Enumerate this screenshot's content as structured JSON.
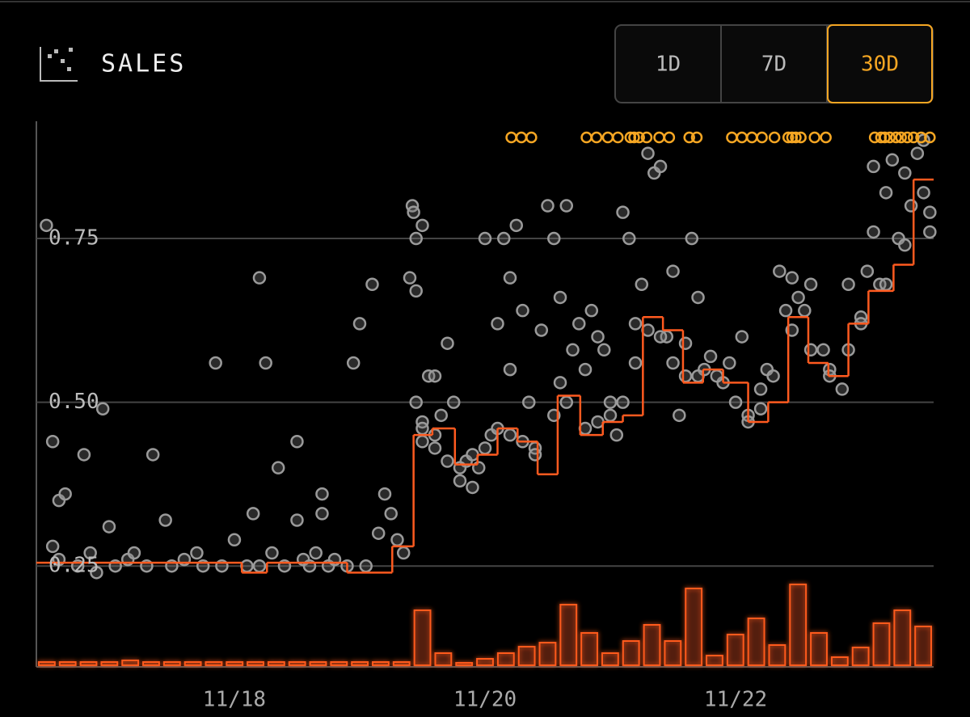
{
  "header": {
    "title": "SALES"
  },
  "buttons": [
    {
      "label": "1D",
      "active": false
    },
    {
      "label": "7D",
      "active": false
    },
    {
      "label": "30D",
      "active": true
    }
  ],
  "chart_data": {
    "type": "scatter",
    "xlim": [
      16.42,
      23.58
    ],
    "ylim": [
      0.096,
      0.929
    ],
    "xticks": [
      {
        "value": 18,
        "label": "11/18"
      },
      {
        "value": 20,
        "label": "11/20"
      },
      {
        "value": 22,
        "label": "11/22"
      }
    ],
    "yticks": [
      0.25,
      {
        "value": 0.5,
        "label": "0.50"
      },
      0.75
    ],
    "grid": true,
    "sales": {
      "color": "#9a9a9a",
      "points": [
        [
          16.5,
          0.77
        ],
        [
          16.55,
          0.44
        ],
        [
          16.6,
          0.35
        ],
        [
          16.65,
          0.36
        ],
        [
          16.55,
          0.28
        ],
        [
          16.6,
          0.26
        ],
        [
          16.75,
          0.25
        ],
        [
          16.8,
          0.42
        ],
        [
          16.85,
          0.27
        ],
        [
          16.9,
          0.24
        ],
        [
          16.95,
          0.49
        ],
        [
          17.0,
          0.31
        ],
        [
          17.05,
          0.25
        ],
        [
          17.15,
          0.26
        ],
        [
          17.2,
          0.27
        ],
        [
          17.3,
          0.25
        ],
        [
          17.35,
          0.42
        ],
        [
          17.45,
          0.32
        ],
        [
          17.5,
          0.25
        ],
        [
          17.6,
          0.26
        ],
        [
          17.7,
          0.27
        ],
        [
          17.75,
          0.25
        ],
        [
          17.85,
          0.56
        ],
        [
          17.9,
          0.25
        ],
        [
          18.0,
          0.29
        ],
        [
          18.1,
          0.25
        ],
        [
          18.15,
          0.33
        ],
        [
          18.2,
          0.25
        ],
        [
          18.2,
          0.69
        ],
        [
          18.25,
          0.56
        ],
        [
          18.3,
          0.27
        ],
        [
          18.35,
          0.4
        ],
        [
          18.4,
          0.25
        ],
        [
          18.5,
          0.44
        ],
        [
          18.5,
          0.32
        ],
        [
          18.55,
          0.26
        ],
        [
          18.6,
          0.25
        ],
        [
          18.65,
          0.27
        ],
        [
          18.7,
          0.36
        ],
        [
          18.7,
          0.33
        ],
        [
          18.75,
          0.25
        ],
        [
          18.8,
          0.26
        ],
        [
          18.9,
          0.25
        ],
        [
          18.95,
          0.56
        ],
        [
          19.0,
          0.62
        ],
        [
          19.05,
          0.25
        ],
        [
          19.1,
          0.68
        ],
        [
          19.15,
          0.3
        ],
        [
          19.2,
          0.36
        ],
        [
          19.25,
          0.33
        ],
        [
          19.3,
          0.29
        ],
        [
          19.35,
          0.27
        ],
        [
          19.42,
          0.8
        ],
        [
          19.43,
          0.79
        ],
        [
          19.45,
          0.75
        ],
        [
          19.4,
          0.69
        ],
        [
          19.45,
          0.67
        ],
        [
          19.5,
          0.77
        ],
        [
          19.45,
          0.5
        ],
        [
          19.5,
          0.47
        ],
        [
          19.5,
          0.44
        ],
        [
          19.55,
          0.54
        ],
        [
          19.6,
          0.54
        ],
        [
          19.65,
          0.48
        ],
        [
          19.6,
          0.43
        ],
        [
          19.7,
          0.59
        ],
        [
          19.75,
          0.5
        ],
        [
          19.8,
          0.38
        ],
        [
          19.85,
          0.41
        ],
        [
          19.9,
          0.37
        ],
        [
          19.95,
          0.4
        ],
        [
          20.0,
          0.75
        ],
        [
          20.05,
          0.45
        ],
        [
          20.1,
          0.62
        ],
        [
          20.15,
          0.75
        ],
        [
          20.2,
          0.69
        ],
        [
          20.25,
          0.77
        ],
        [
          20.2,
          0.55
        ],
        [
          20.3,
          0.64
        ],
        [
          20.35,
          0.5
        ],
        [
          20.4,
          0.43
        ],
        [
          20.45,
          0.61
        ],
        [
          20.5,
          0.8
        ],
        [
          20.55,
          0.75
        ],
        [
          20.6,
          0.53
        ],
        [
          20.65,
          0.8
        ],
        [
          20.6,
          0.66
        ],
        [
          20.7,
          0.58
        ],
        [
          20.75,
          0.62
        ],
        [
          20.8,
          0.55
        ],
        [
          20.85,
          0.64
        ],
        [
          20.9,
          0.6
        ],
        [
          20.95,
          0.58
        ],
        [
          21.0,
          0.5
        ],
        [
          21.05,
          0.45
        ],
        [
          21.1,
          0.79
        ],
        [
          21.15,
          0.75
        ],
        [
          21.2,
          0.62
        ],
        [
          21.25,
          0.68
        ],
        [
          21.3,
          0.88
        ],
        [
          21.35,
          0.85
        ],
        [
          21.4,
          0.86
        ],
        [
          21.45,
          0.6
        ],
        [
          21.5,
          0.7
        ],
        [
          21.55,
          0.48
        ],
        [
          21.6,
          0.59
        ],
        [
          21.65,
          0.75
        ],
        [
          21.7,
          0.66
        ],
        [
          21.75,
          0.55
        ],
        [
          21.8,
          0.57
        ],
        [
          21.9,
          0.53
        ],
        [
          21.95,
          0.56
        ],
        [
          22.05,
          0.6
        ],
        [
          22.1,
          0.48
        ],
        [
          22.2,
          0.52
        ],
        [
          22.25,
          0.55
        ],
        [
          22.35,
          0.7
        ],
        [
          22.4,
          0.64
        ],
        [
          22.45,
          0.69
        ],
        [
          22.5,
          0.66
        ],
        [
          22.55,
          0.64
        ],
        [
          22.6,
          0.68
        ],
        [
          22.7,
          0.58
        ],
        [
          22.75,
          0.55
        ],
        [
          22.85,
          0.52
        ],
        [
          22.9,
          0.68
        ],
        [
          23.0,
          0.63
        ],
        [
          23.05,
          0.7
        ],
        [
          23.1,
          0.76
        ],
        [
          23.1,
          0.86
        ],
        [
          23.15,
          0.68
        ],
        [
          23.2,
          0.82
        ],
        [
          23.25,
          0.87
        ],
        [
          23.3,
          0.75
        ],
        [
          23.35,
          0.85
        ],
        [
          23.4,
          0.8
        ],
        [
          23.45,
          0.88
        ],
        [
          23.5,
          0.82
        ],
        [
          23.55,
          0.79
        ],
        [
          23.5,
          0.9
        ],
        [
          23.55,
          0.76
        ],
        [
          19.5,
          0.46
        ],
        [
          19.6,
          0.45
        ],
        [
          19.7,
          0.41
        ],
        [
          19.8,
          0.4
        ],
        [
          19.9,
          0.42
        ],
        [
          20.0,
          0.43
        ],
        [
          20.1,
          0.46
        ],
        [
          20.2,
          0.45
        ],
        [
          20.3,
          0.44
        ],
        [
          20.4,
          0.42
        ],
        [
          20.55,
          0.48
        ],
        [
          20.65,
          0.5
        ],
        [
          20.8,
          0.46
        ],
        [
          20.9,
          0.47
        ],
        [
          21.0,
          0.48
        ],
        [
          21.1,
          0.5
        ],
        [
          21.2,
          0.56
        ],
        [
          21.3,
          0.61
        ],
        [
          21.4,
          0.6
        ],
        [
          21.5,
          0.56
        ],
        [
          21.6,
          0.54
        ],
        [
          21.7,
          0.54
        ],
        [
          21.85,
          0.54
        ],
        [
          22.0,
          0.5
        ],
        [
          22.1,
          0.47
        ],
        [
          22.2,
          0.49
        ],
        [
          22.3,
          0.54
        ],
        [
          22.45,
          0.61
        ],
        [
          22.6,
          0.58
        ],
        [
          22.75,
          0.54
        ],
        [
          22.9,
          0.58
        ],
        [
          23.0,
          0.62
        ],
        [
          23.2,
          0.68
        ],
        [
          23.35,
          0.74
        ]
      ]
    },
    "step": {
      "color": "#ff5a1f",
      "x": [
        16.42,
        18.06,
        18.26,
        18.9,
        19.26,
        19.43,
        19.58,
        19.76,
        19.94,
        20.1,
        20.26,
        20.42,
        20.58,
        20.76,
        20.94,
        21.1,
        21.26,
        21.42,
        21.58,
        21.74,
        21.9,
        22.1,
        22.26,
        22.42,
        22.58,
        22.74,
        22.9,
        23.06,
        23.26,
        23.42
      ],
      "values": [
        0.255,
        0.24,
        0.255,
        0.24,
        0.28,
        0.45,
        0.46,
        0.405,
        0.42,
        0.46,
        0.44,
        0.39,
        0.51,
        0.45,
        0.47,
        0.48,
        0.63,
        0.61,
        0.53,
        0.55,
        0.53,
        0.47,
        0.5,
        0.63,
        0.56,
        0.54,
        0.62,
        0.67,
        0.71,
        0.84
      ]
    },
    "above_range": {
      "color": "#f5a623",
      "x": [
        20.21,
        20.29,
        20.37,
        20.81,
        20.89,
        20.98,
        21.06,
        21.16,
        21.19,
        21.23,
        21.29,
        21.39,
        21.47,
        21.63,
        21.69,
        21.97,
        22.05,
        22.13,
        22.21,
        22.31,
        22.42,
        22.45,
        22.48,
        22.52,
        22.63,
        22.72,
        23.11,
        23.16,
        23.19,
        23.23,
        23.28,
        23.32,
        23.37,
        23.42,
        23.48,
        23.55
      ]
    },
    "volume": {
      "color": "#ff5a1f",
      "volume_lim": [
        0,
        110
      ],
      "values": [
        4,
        4,
        4,
        4,
        6,
        4,
        4,
        4,
        4,
        4,
        4,
        4,
        4,
        4,
        4,
        4,
        4,
        4,
        68,
        15,
        3,
        8,
        15,
        23,
        28,
        75,
        40,
        15,
        30,
        50,
        30,
        95,
        12,
        38,
        58,
        25,
        100,
        40,
        10,
        22,
        52,
        68,
        48
      ]
    }
  }
}
